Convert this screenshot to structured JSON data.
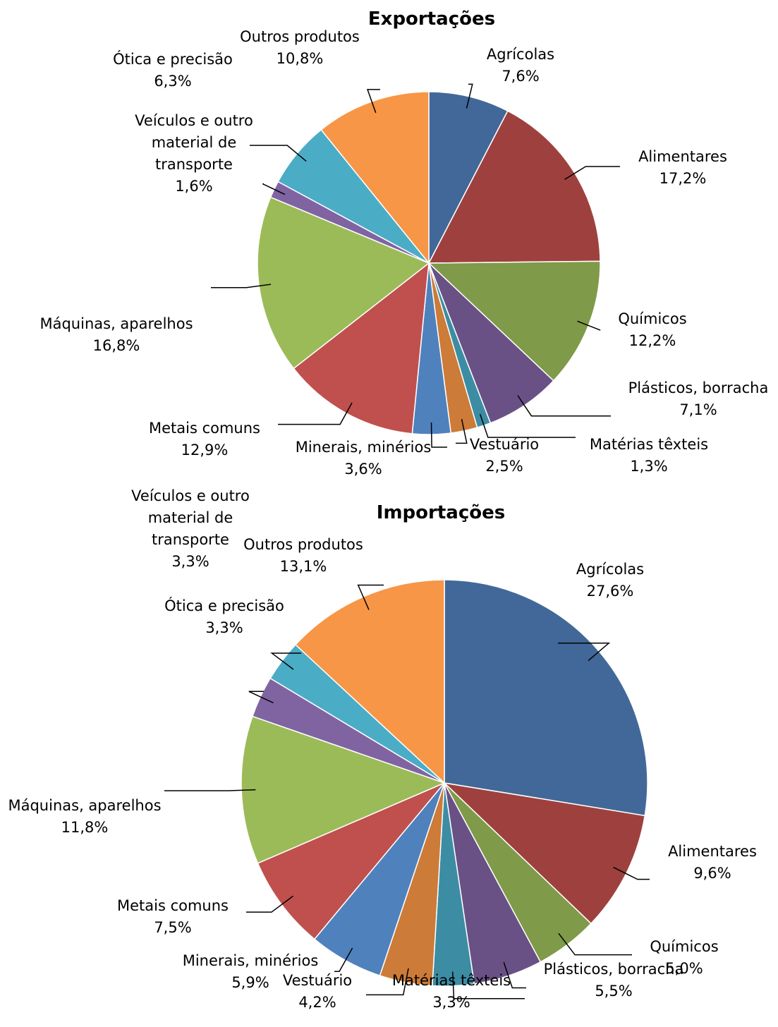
{
  "chart_data": [
    {
      "type": "pie",
      "title": "Exportações",
      "categories": [
        "Agrícolas",
        "Alimentares",
        "Químicos",
        "Plásticos, borracha",
        "Matérias têxteis",
        "Vestuário",
        "Minerais, minérios",
        "Metais comuns",
        "Máquinas, aparelhos",
        "Veículos e outro material de transporte",
        "Ótica e precisão",
        "Outros produtos"
      ],
      "values": [
        7.6,
        17.2,
        12.2,
        7.1,
        1.3,
        2.5,
        3.6,
        12.9,
        16.8,
        1.6,
        6.3,
        10.8
      ],
      "value_labels": [
        "7,6%",
        "17,2%",
        "12,2%",
        "7,1%",
        "1,3%",
        "2,5%",
        "3,6%",
        "12,9%",
        "16,8%",
        "1,6%",
        "6,3%",
        "10,8%"
      ],
      "colors": [
        "#416898",
        "#9e413e",
        "#7f9a48",
        "#695185",
        "#3c8da3",
        "#cc7b38",
        "#4f81bd",
        "#c0504d",
        "#9bbb59",
        "#8064a2",
        "#4bacc6",
        "#f79646"
      ]
    },
    {
      "type": "pie",
      "title": "Importações",
      "categories": [
        "Agrícolas",
        "Alimentares",
        "Químicos",
        "Plásticos, borracha",
        "Matérias têxteis",
        "Vestuário",
        "Minerais, minérios",
        "Metais comuns",
        "Máquinas, aparelhos",
        "Veículos e outro material de transporte",
        "Ótica e precisão",
        "Outros produtos"
      ],
      "values": [
        27.6,
        9.6,
        5.0,
        5.5,
        3.3,
        4.2,
        5.9,
        7.5,
        11.8,
        3.3,
        3.3,
        13.1
      ],
      "value_labels": [
        "27,6%",
        "9,6%",
        "5,0%",
        "5,5%",
        "3,3%",
        "4,2%",
        "5,9%",
        "7,5%",
        "11,8%",
        "3,3%",
        "3,3%",
        "13,1%"
      ],
      "colors": [
        "#416898",
        "#9e413e",
        "#7f9a48",
        "#695185",
        "#3c8da3",
        "#cc7b38",
        "#4f81bd",
        "#c0504d",
        "#9bbb59",
        "#8064a2",
        "#4bacc6",
        "#f79646"
      ]
    }
  ]
}
